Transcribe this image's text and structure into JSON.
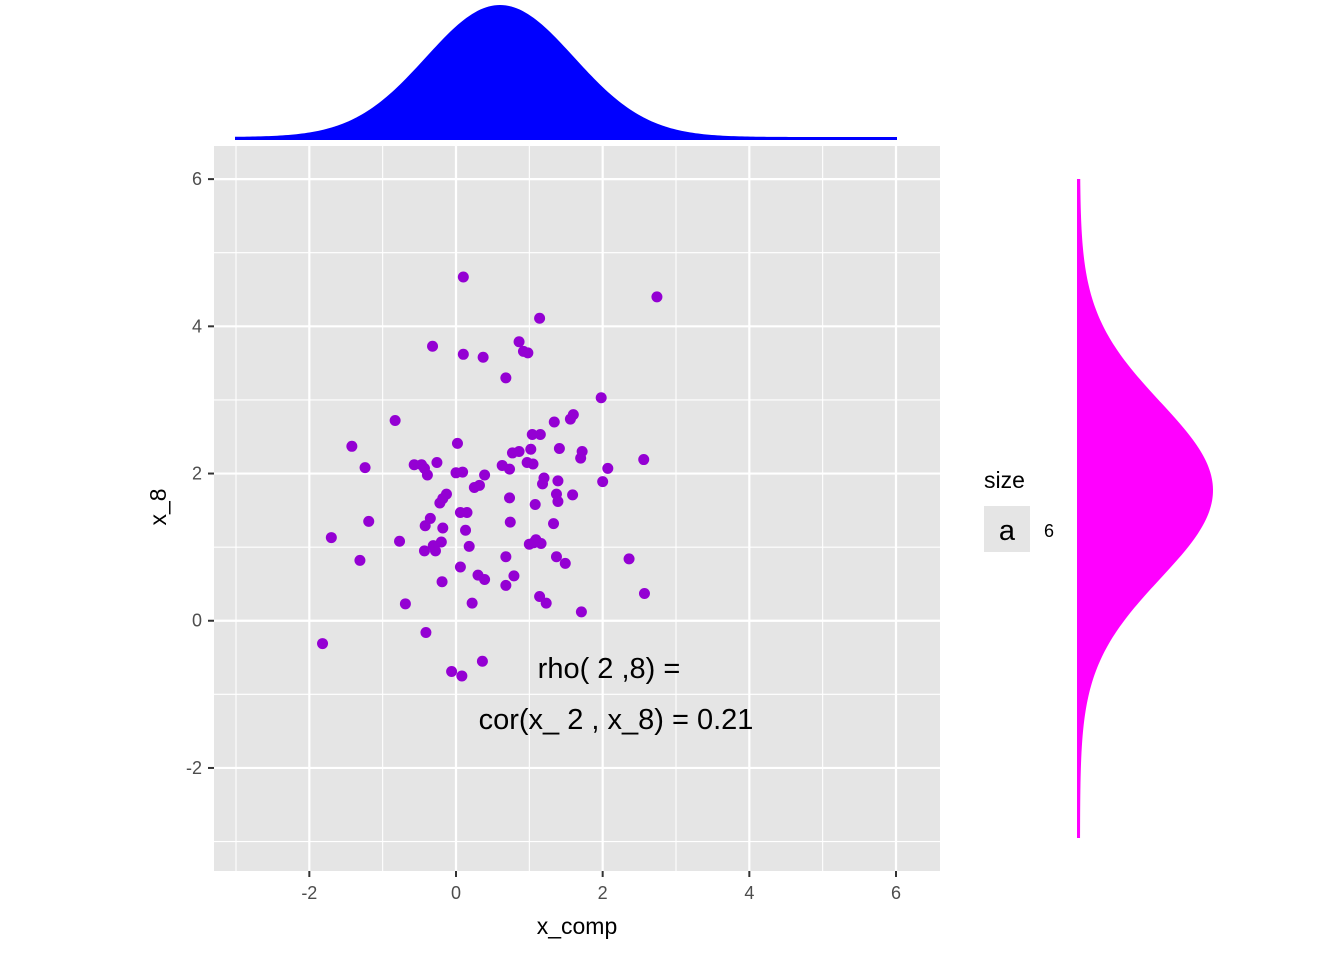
{
  "chart_data": {
    "type": "scatter",
    "xlabel": "x_comp",
    "ylabel": "x_8",
    "xlim": [
      -3.3,
      6.6
    ],
    "ylim": [
      -3.4,
      6.45
    ],
    "x_ticks": [
      -2,
      0,
      2,
      4,
      6
    ],
    "y_ticks": [
      -2,
      0,
      2,
      4,
      6
    ],
    "grid": true,
    "point_color": "#9400D3",
    "panel_background": "#E5E5E5",
    "annotation": [
      "rho( 2 ,8) =",
      "cor(x_ 2 , x_8) =  0.21"
    ],
    "legend": {
      "title": "size",
      "key": "a",
      "label": "6",
      "placement": "right"
    },
    "marginal_x": {
      "type": "density",
      "color": "#0000FF",
      "mean": 0.6,
      "sd": 1.0,
      "range": [
        -3,
        6
      ]
    },
    "marginal_y": {
      "type": "density",
      "color": "#FF00FF",
      "mean": 1.75,
      "sd": 1.2,
      "range": [
        -3,
        6
      ]
    },
    "points": [
      [
        0.1,
        4.67
      ],
      [
        2.74,
        4.4
      ],
      [
        1.14,
        4.11
      ],
      [
        0.86,
        3.79
      ],
      [
        0.92,
        3.66
      ],
      [
        0.98,
        3.64
      ],
      [
        -0.32,
        3.73
      ],
      [
        0.1,
        3.62
      ],
      [
        0.37,
        3.58
      ],
      [
        0.68,
        3.3
      ],
      [
        1.98,
        3.03
      ],
      [
        1.6,
        2.8
      ],
      [
        1.56,
        2.74
      ],
      [
        -0.83,
        2.72
      ],
      [
        1.34,
        2.7
      ],
      [
        1.04,
        2.53
      ],
      [
        1.15,
        2.53
      ],
      [
        -1.42,
        2.37
      ],
      [
        0.02,
        2.41
      ],
      [
        1.41,
        2.34
      ],
      [
        1.02,
        2.33
      ],
      [
        0.86,
        2.3
      ],
      [
        0.77,
        2.28
      ],
      [
        1.72,
        2.3
      ],
      [
        0.97,
        2.15
      ],
      [
        1.05,
        2.13
      ],
      [
        1.7,
        2.21
      ],
      [
        2.56,
        2.19
      ],
      [
        -0.57,
        2.12
      ],
      [
        -0.47,
        2.12
      ],
      [
        -0.43,
        2.07
      ],
      [
        -1.24,
        2.08
      ],
      [
        -0.26,
        2.15
      ],
      [
        0.63,
        2.11
      ],
      [
        0.73,
        2.06
      ],
      [
        2.07,
        2.07
      ],
      [
        0.0,
        2.01
      ],
      [
        0.09,
        2.02
      ],
      [
        -0.39,
        1.98
      ],
      [
        0.39,
        1.98
      ],
      [
        1.2,
        1.94
      ],
      [
        1.18,
        1.86
      ],
      [
        1.39,
        1.9
      ],
      [
        2.0,
        1.89
      ],
      [
        0.32,
        1.84
      ],
      [
        0.25,
        1.81
      ],
      [
        1.37,
        1.72
      ],
      [
        1.59,
        1.71
      ],
      [
        -0.13,
        1.72
      ],
      [
        -0.18,
        1.66
      ],
      [
        0.73,
        1.67
      ],
      [
        1.39,
        1.62
      ],
      [
        -0.22,
        1.6
      ],
      [
        1.08,
        1.58
      ],
      [
        0.06,
        1.47
      ],
      [
        0.15,
        1.47
      ],
      [
        -1.19,
        1.35
      ],
      [
        -0.35,
        1.39
      ],
      [
        0.74,
        1.34
      ],
      [
        -0.42,
        1.29
      ],
      [
        -0.18,
        1.26
      ],
      [
        1.33,
        1.32
      ],
      [
        0.13,
        1.23
      ],
      [
        1.09,
        1.1
      ],
      [
        -1.7,
        1.13
      ],
      [
        -0.77,
        1.08
      ],
      [
        1.06,
        1.06
      ],
      [
        1.16,
        1.05
      ],
      [
        1.0,
        1.04
      ],
      [
        -0.2,
        1.07
      ],
      [
        -0.31,
        1.02
      ],
      [
        0.18,
        1.01
      ],
      [
        -0.43,
        0.95
      ],
      [
        -0.28,
        0.95
      ],
      [
        0.68,
        0.87
      ],
      [
        1.37,
        0.87
      ],
      [
        1.49,
        0.78
      ],
      [
        2.36,
        0.84
      ],
      [
        -1.31,
        0.82
      ],
      [
        0.06,
        0.73
      ],
      [
        0.3,
        0.62
      ],
      [
        0.79,
        0.61
      ],
      [
        0.39,
        0.56
      ],
      [
        -0.19,
        0.53
      ],
      [
        0.68,
        0.48
      ],
      [
        2.57,
        0.37
      ],
      [
        1.14,
        0.33
      ],
      [
        1.23,
        0.24
      ],
      [
        -0.69,
        0.23
      ],
      [
        0.22,
        0.24
      ],
      [
        1.71,
        0.12
      ],
      [
        -0.41,
        -0.16
      ],
      [
        -1.82,
        -0.31
      ],
      [
        0.36,
        -0.55
      ],
      [
        -0.06,
        -0.69
      ],
      [
        0.08,
        -0.75
      ]
    ]
  }
}
